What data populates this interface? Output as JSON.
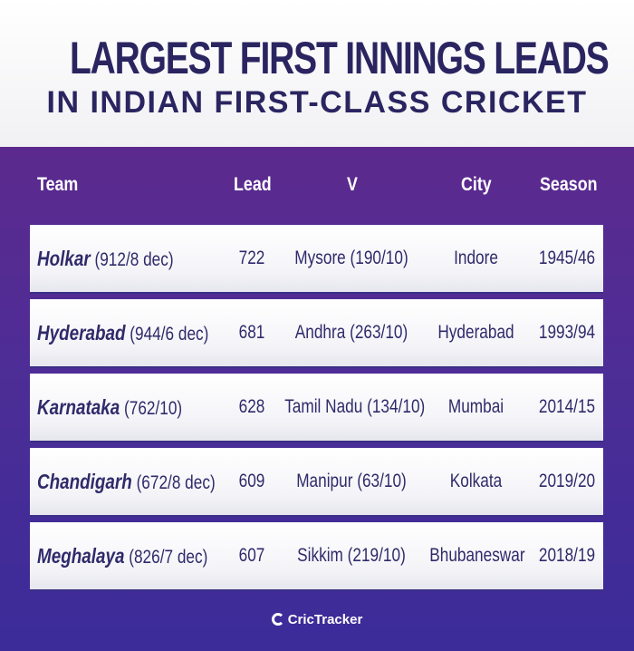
{
  "title": {
    "line1": "LARGEST FIRST INNINGS LEADS",
    "line2": "IN INDIAN FIRST-CLASS CRICKET"
  },
  "table": {
    "columns": [
      "Team",
      "Lead",
      "V",
      "City",
      "Season"
    ],
    "rows": [
      {
        "team": "Holkar",
        "score": "(912/8 dec)",
        "lead": "722",
        "opponent": "Mysore (190/10)",
        "city": "Indore",
        "season": "1945/46"
      },
      {
        "team": "Hyderabad",
        "score": "(944/6 dec)",
        "lead": "681",
        "opponent": "Andhra (263/10)",
        "city": "Hyderabad",
        "season": "1993/94"
      },
      {
        "team": "Karnataka",
        "score": "(762/10)",
        "lead": "628",
        "opponent": "Tamil Nadu (134/10)",
        "city": "Mumbai",
        "season": "2014/15"
      },
      {
        "team": "Chandigarh",
        "score": "(672/8 dec)",
        "lead": "609",
        "opponent": "Manipur (63/10)",
        "city": "Kolkata",
        "season": "2019/20"
      },
      {
        "team": "Meghalaya",
        "score": "(826/7 dec)",
        "lead": "607",
        "opponent": "Sikkim (219/10)",
        "city": "Bhubaneswar",
        "season": "2018/19"
      }
    ]
  },
  "brand": {
    "name": "CricTracker",
    "icon": "crictracker-logo-icon"
  },
  "colors": {
    "title": "#2a2560",
    "panel_top": "#5c2a8e",
    "panel_bottom": "#3b2c99",
    "row_text": "#2f2a6a"
  }
}
